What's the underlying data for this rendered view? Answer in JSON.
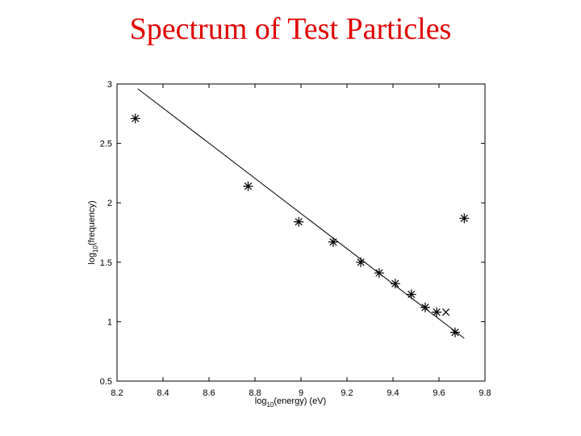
{
  "chart_data": {
    "type": "scatter",
    "title": "Spectrum of Test Particles",
    "xlabel": {
      "base": "log",
      "sub": "10",
      "rest": "(energy) (eV)"
    },
    "ylabel": {
      "base": "log",
      "sub": "10",
      "rest": "(frequency)"
    },
    "xlim": [
      8.2,
      9.8
    ],
    "ylim": [
      0.5,
      3
    ],
    "xticks": [
      8.2,
      8.4,
      8.6,
      8.8,
      9,
      9.2,
      9.4,
      9.6,
      9.8
    ],
    "yticks": [
      0.5,
      1,
      1.5,
      2,
      2.5,
      3
    ],
    "series": [
      {
        "marker": "asterisk",
        "color": "#000000",
        "x": [
          8.28,
          8.77,
          8.99,
          9.14,
          9.26,
          9.34,
          9.41,
          9.48,
          9.54,
          9.59,
          9.67,
          9.71
        ],
        "values": [
          2.71,
          2.14,
          1.84,
          1.67,
          1.5,
          1.41,
          1.32,
          1.23,
          1.12,
          1.08,
          0.91,
          1.87
        ]
      },
      {
        "marker": "cross",
        "color": "#000000",
        "x": [
          9.63
        ],
        "values": [
          1.08
        ]
      }
    ],
    "fit": {
      "color": "#000000",
      "x": [
        8.29,
        9.71
      ],
      "values": [
        2.96,
        0.86
      ]
    }
  }
}
